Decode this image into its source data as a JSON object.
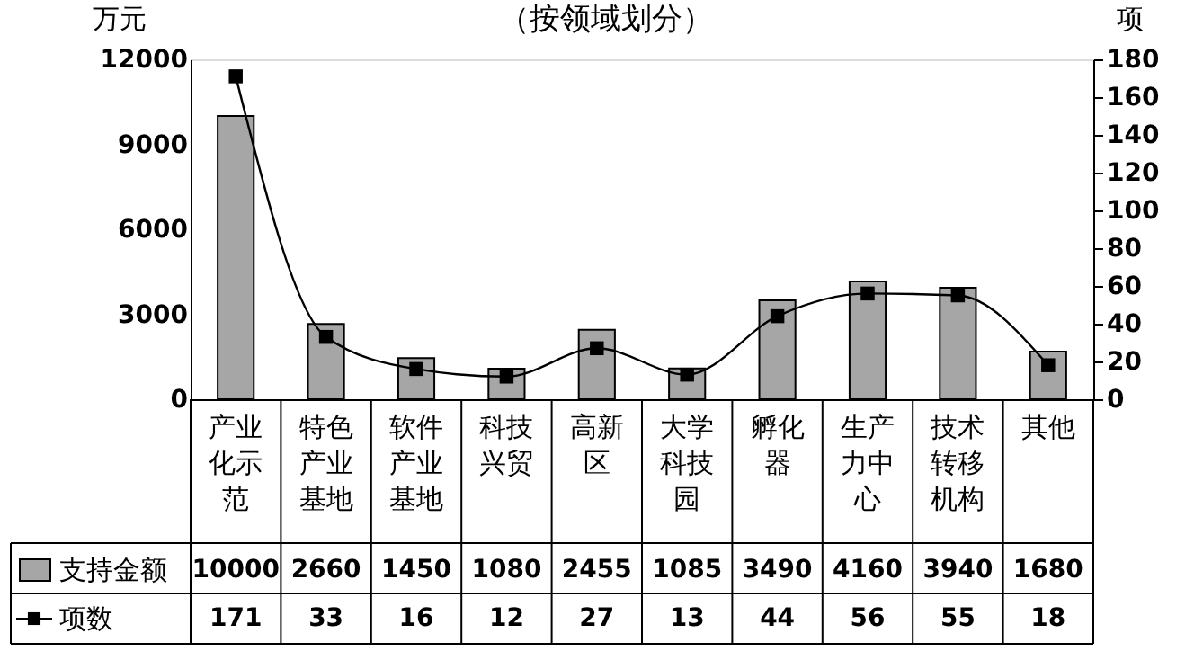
{
  "chart_data": {
    "type": "bar",
    "title": "（按领域划分）",
    "ylabel": "万元",
    "y2label": "项",
    "categories": [
      "产业化示范",
      "特色产业基地",
      "软件产业基地",
      "科技兴贸",
      "高新区",
      "大学科技园",
      "孵化器",
      "生产力中心",
      "技术转移机构",
      "其他"
    ],
    "series": [
      {
        "name": "支持金额",
        "color": "#a6a6a6",
        "values": [
          10000,
          2660,
          1450,
          1080,
          2455,
          1085,
          3490,
          4160,
          3940,
          1680
        ]
      },
      {
        "name": "项数",
        "type": "line",
        "axis": "y2",
        "color": "#000000",
        "marker": "square",
        "line_style": "solid",
        "values": [
          171,
          33,
          16,
          12,
          27,
          13,
          44,
          56,
          55,
          18
        ]
      }
    ],
    "ylim": [
      0,
      12000
    ],
    "yticks": [
      0,
      3000,
      6000,
      9000,
      12000
    ],
    "y2lim": [
      0,
      180
    ],
    "y2ticks": [
      0,
      20,
      40,
      60,
      80,
      100,
      120,
      140,
      160,
      180
    ],
    "data_labels": true,
    "legend": "bottom",
    "grid": false
  }
}
